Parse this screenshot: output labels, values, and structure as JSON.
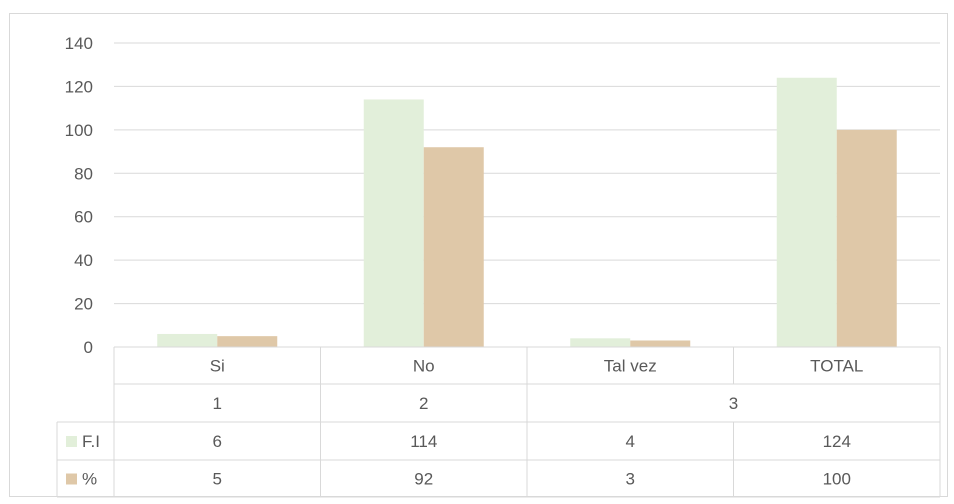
{
  "chart_data": {
    "type": "bar",
    "categories": [
      "Si",
      "No",
      "Tal vez",
      "TOTAL"
    ],
    "group_labels": [
      {
        "label": "1",
        "span": 1
      },
      {
        "label": "2",
        "span": 1
      },
      {
        "label": "3",
        "span": 2
      }
    ],
    "series": [
      {
        "name": "F.I",
        "values": [
          6,
          114,
          4,
          124
        ],
        "color": "#e2efda"
      },
      {
        "name": "%",
        "values": [
          5,
          92,
          3,
          100
        ],
        "color": "#dfc8a8"
      }
    ],
    "ylim": [
      0,
      140
    ],
    "yticks": [
      0,
      20,
      40,
      60,
      80,
      100,
      120,
      140
    ],
    "grid": true,
    "legend": "data-table",
    "title": "",
    "xlabel": "",
    "ylabel": ""
  }
}
